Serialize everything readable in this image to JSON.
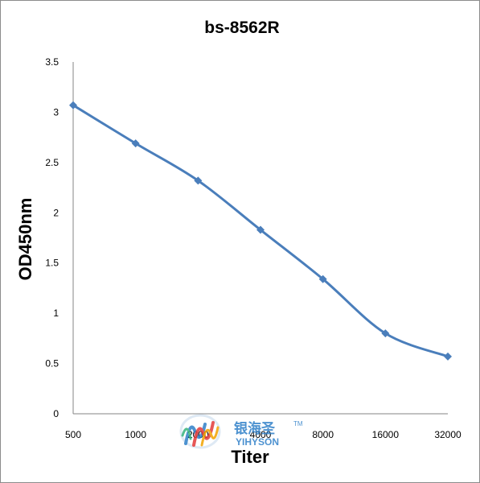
{
  "chart_data": {
    "type": "line",
    "title": "bs-8562R",
    "xlabel": "Titer",
    "ylabel": "OD450nm",
    "categories": [
      "500",
      "1000",
      "2000",
      "4000",
      "8000",
      "16000",
      "32000"
    ],
    "series": [
      {
        "values": [
          3.07,
          2.69,
          2.32,
          1.83,
          1.34,
          0.8,
          0.57
        ]
      }
    ],
    "ylim": [
      0,
      3.5
    ],
    "yticks": [
      "0",
      "0.5",
      "1",
      "1.5",
      "2",
      "2.5",
      "3",
      "3.5"
    ],
    "grid": false,
    "legend": "none",
    "line_color": "#4a7ebb"
  },
  "watermark": {
    "brand_cn": "银海圣",
    "brand_en": "YIHYSON",
    "trademark": "TM",
    "colors": [
      "#2e7fc8",
      "#e23a3a",
      "#f2a300",
      "#36b37e"
    ]
  }
}
